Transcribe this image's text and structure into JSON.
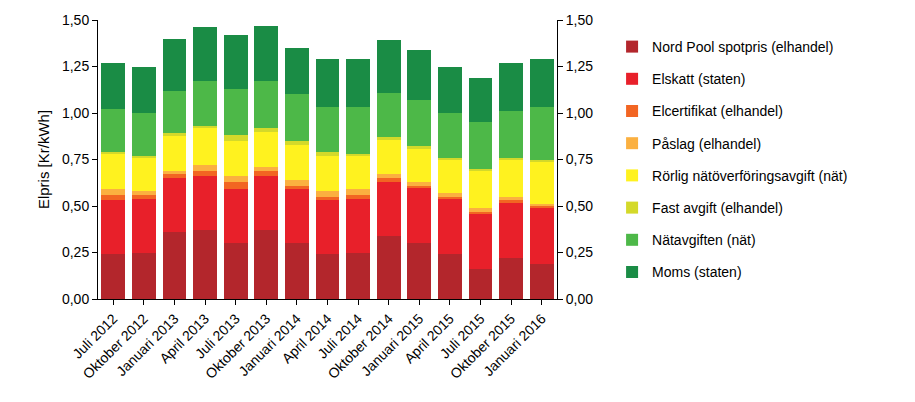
{
  "chart_data": {
    "type": "bar",
    "stacked": true,
    "grid": false,
    "legend": "right",
    "y_label": "Elpris [Kr/kWh]",
    "categories": [
      "Juli 2012",
      "Oktober 2012",
      "Januari 2013",
      "April 2013",
      "Juli 2013",
      "Oktober 2013",
      "Januari 2014",
      "April 2014",
      "Juli 2014",
      "Oktober 2014",
      "Januari 2015",
      "April 2015",
      "Juli 2015",
      "Oktober 2015",
      "Januari 2016"
    ],
    "ylim": [
      0,
      1.5
    ],
    "yticks": [
      {
        "value": 0,
        "label": "0,00"
      },
      {
        "value": 0.25,
        "label": "0,25"
      },
      {
        "value": 0.5,
        "label": "0,50"
      },
      {
        "value": 0.75,
        "label": "0,75"
      },
      {
        "value": 1,
        "label": "1,00"
      },
      {
        "value": 1.25,
        "label": "1,25"
      },
      {
        "value": 1.5,
        "label": "1,50"
      }
    ],
    "y2lim": [
      0,
      1.5
    ],
    "y2ticks": [
      {
        "value": 0,
        "label": "0,00"
      },
      {
        "value": 0.25,
        "label": "0,25"
      },
      {
        "value": 0.5,
        "label": "0,50"
      },
      {
        "value": 0.75,
        "label": "0,75"
      },
      {
        "value": 1,
        "label": "1,00"
      },
      {
        "value": 1.25,
        "label": "1,25"
      },
      {
        "value": 1.5,
        "label": "1,50"
      }
    ],
    "series": [
      {
        "name": "Nord Pool spotpris (elhandel)",
        "color": "#b3262c",
        "values": [
          0.24,
          0.25,
          0.36,
          0.37,
          0.3,
          0.37,
          0.3,
          0.24,
          0.25,
          0.34,
          0.3,
          0.24,
          0.16,
          0.22,
          0.19
        ]
      },
      {
        "name": "Elskatt (staten)",
        "color": "#e8202a",
        "values": [
          0.29,
          0.29,
          0.29,
          0.29,
          0.29,
          0.29,
          0.29,
          0.29,
          0.29,
          0.29,
          0.3,
          0.3,
          0.3,
          0.3,
          0.3
        ]
      },
      {
        "name": "Elcertifikat (elhandel)",
        "color": "#f26522",
        "values": [
          0.03,
          0.02,
          0.02,
          0.03,
          0.04,
          0.03,
          0.02,
          0.02,
          0.02,
          0.02,
          0.01,
          0.01,
          0.01,
          0.01,
          0.01
        ]
      },
      {
        "name": "Påslag (elhandel)",
        "color": "#fbb040",
        "values": [
          0.03,
          0.02,
          0.02,
          0.03,
          0.03,
          0.02,
          0.03,
          0.03,
          0.03,
          0.02,
          0.02,
          0.02,
          0.02,
          0.02,
          0.01
        ]
      },
      {
        "name": "Rörlig nätöverföringsavgift (nät)",
        "color": "#fff21f",
        "values": [
          0.19,
          0.18,
          0.19,
          0.2,
          0.19,
          0.19,
          0.19,
          0.19,
          0.18,
          0.19,
          0.18,
          0.18,
          0.2,
          0.2,
          0.23
        ]
      },
      {
        "name": "Fast avgift (elhandel)",
        "color": "#d4d92a",
        "values": [
          0.01,
          0.01,
          0.01,
          0.01,
          0.03,
          0.02,
          0.02,
          0.02,
          0.01,
          0.01,
          0.01,
          0.01,
          0.01,
          0.01,
          0.01
        ]
      },
      {
        "name": "Nätavgiften (nät)",
        "color": "#4db848",
        "values": [
          0.23,
          0.23,
          0.23,
          0.24,
          0.25,
          0.25,
          0.25,
          0.24,
          0.25,
          0.24,
          0.25,
          0.24,
          0.25,
          0.25,
          0.28
        ]
      },
      {
        "name": "Moms (staten)",
        "color": "#1a8c45",
        "values": [
          0.25,
          0.25,
          0.28,
          0.29,
          0.29,
          0.3,
          0.25,
          0.26,
          0.26,
          0.28,
          0.27,
          0.25,
          0.24,
          0.26,
          0.26
        ]
      }
    ]
  }
}
